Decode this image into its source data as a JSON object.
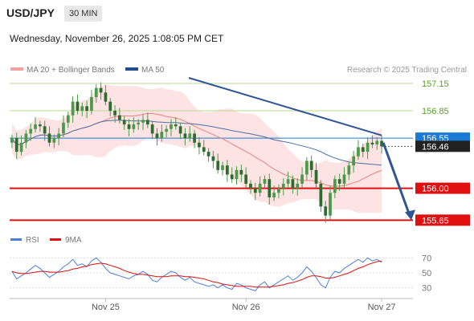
{
  "header": {
    "symbol": "USD/JPY",
    "timeframe": "30 MIN",
    "timestamp": "Wednesday, November 26, 2025 1:08:05 PM CET"
  },
  "legend": {
    "items": [
      {
        "label": "MA 20 + Bollinger Bands",
        "color": "#f4a0a0"
      },
      {
        "label": "MA 50",
        "color": "#1f4e8c"
      }
    ],
    "credit": "Research © 2025 Trading Central"
  },
  "colors": {
    "candle": "#4a9a4a",
    "resistance": "#b5dc8c",
    "support": "#e01010",
    "pivot": "#1a7bd6",
    "bollinger_fill": "#fde3e3",
    "ma20": "#e88080",
    "ma50": "#4a6fa5",
    "trendline": "#2f5594",
    "rsi": "#4d7fd6",
    "rsi_ma": "#e01010"
  },
  "chart_data": [
    {
      "type": "candlestick",
      "title": "USD/JPY 30 MIN",
      "ylim": [
        155.6,
        157.22
      ],
      "x_ticks": [
        "Nov 25",
        "Nov 26",
        "Nov 27"
      ],
      "levels": [
        {
          "value": 157.15,
          "label": "157.15",
          "kind": "resistance"
        },
        {
          "value": 156.85,
          "label": "156.85",
          "kind": "resistance"
        },
        {
          "value": 156.55,
          "label": "156.55",
          "kind": "pivot"
        },
        {
          "value": 156.0,
          "label": "156.00",
          "kind": "support"
        },
        {
          "value": 155.65,
          "label": "155.65",
          "kind": "support"
        }
      ],
      "last_price": {
        "value": 156.46,
        "label": "156.46"
      },
      "close": [
        156.55,
        156.4,
        156.5,
        156.6,
        156.65,
        156.7,
        156.68,
        156.6,
        156.5,
        156.55,
        156.6,
        156.72,
        156.8,
        156.95,
        156.85,
        156.9,
        156.85,
        157.0,
        157.1,
        157.05,
        156.95,
        156.85,
        156.8,
        156.75,
        156.7,
        156.65,
        156.7,
        156.72,
        156.75,
        156.7,
        156.6,
        156.55,
        156.62,
        156.65,
        156.7,
        156.68,
        156.6,
        156.55,
        156.6,
        156.5,
        156.45,
        156.4,
        156.35,
        156.3,
        156.2,
        156.25,
        156.15,
        156.1,
        156.2,
        156.15,
        156.05,
        156.0,
        155.95,
        156.05,
        156.1,
        155.9,
        155.95,
        156.0,
        156.05,
        156.1,
        156.0,
        156.05,
        156.15,
        156.3,
        156.2,
        156.05,
        155.8,
        155.7,
        155.95,
        156.1,
        156.05,
        156.15,
        156.25,
        156.35,
        156.45,
        156.4,
        156.5,
        156.48,
        156.52,
        156.46
      ]
    },
    {
      "type": "line",
      "title": "RSI",
      "series": [
        {
          "name": "RSI",
          "values": [
            52,
            42,
            46,
            50,
            55,
            60,
            56,
            50,
            44,
            48,
            52,
            58,
            62,
            68,
            60,
            62,
            58,
            66,
            70,
            64,
            56,
            50,
            48,
            46,
            44,
            42,
            46,
            48,
            52,
            48,
            40,
            38,
            44,
            48,
            52,
            50,
            44,
            40,
            44,
            38,
            36,
            34,
            32,
            34,
            30,
            34,
            30,
            28,
            36,
            34,
            30,
            28,
            26,
            34,
            38,
            30,
            34,
            38,
            42,
            46,
            40,
            44,
            50,
            58,
            52,
            44,
            34,
            30,
            44,
            52,
            50,
            56,
            60,
            64,
            68,
            64,
            70,
            66,
            68,
            64
          ]
        },
        {
          "name": "9MA",
          "values": [
            52,
            50,
            49,
            49,
            50,
            51,
            52,
            52,
            51,
            51,
            51,
            52,
            53,
            55,
            56,
            58,
            59,
            61,
            62,
            63,
            62,
            60,
            58,
            56,
            53,
            51,
            49,
            48,
            48,
            47,
            46,
            45,
            45,
            45,
            46,
            46,
            46,
            45,
            45,
            44,
            43,
            42,
            40,
            38,
            37,
            35,
            34,
            33,
            32,
            32,
            32,
            32,
            31,
            31,
            31,
            31,
            32,
            33,
            34,
            36,
            37,
            39,
            41,
            44,
            46,
            46,
            45,
            43,
            43,
            44,
            46,
            48,
            50,
            53,
            56,
            58,
            61,
            63,
            65,
            66
          ]
        }
      ],
      "ylim": [
        20,
        80
      ],
      "y_ticks": [
        70,
        50,
        30
      ]
    }
  ]
}
